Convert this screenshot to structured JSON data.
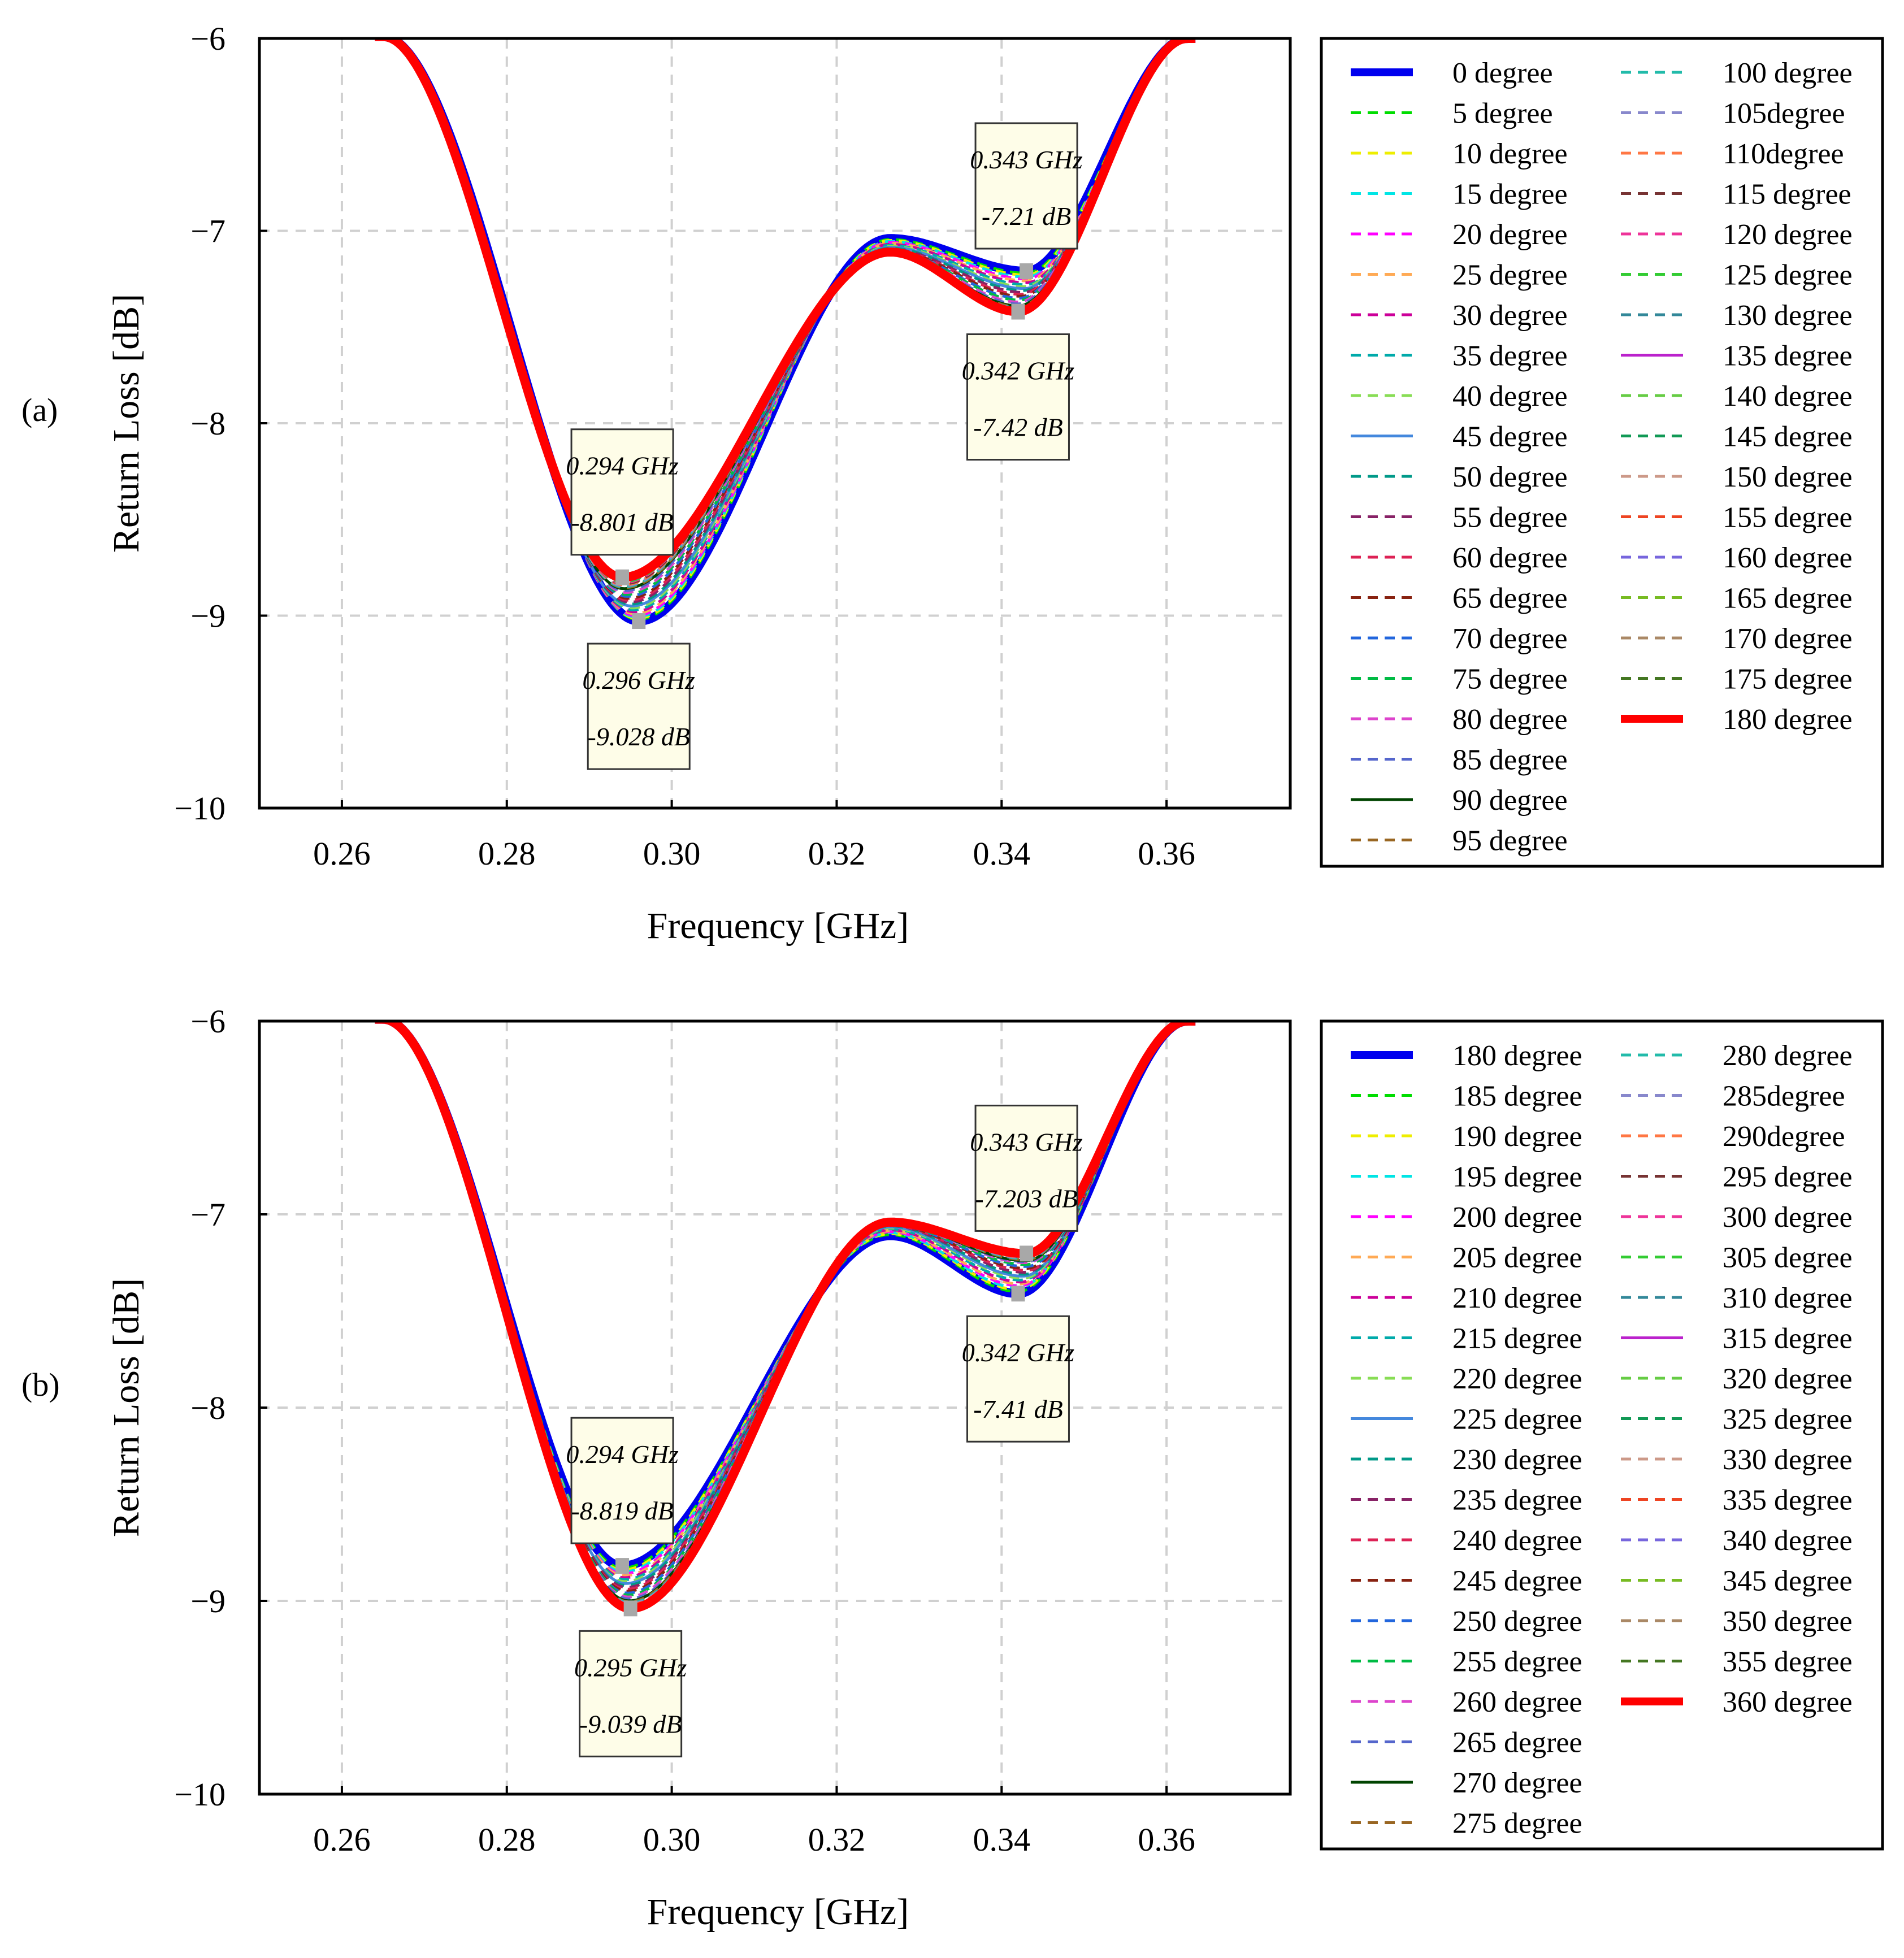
{
  "chart_data": [
    {
      "type": "line",
      "panel_label": "(a)",
      "xlabel": "Frequency [GHz]",
      "ylabel": "Return Loss [dB]",
      "xlim": [
        0.25,
        0.375
      ],
      "ylim": [
        -10,
        -6
      ],
      "xticks": [
        0.26,
        0.28,
        0.3,
        0.32,
        0.34,
        0.36
      ],
      "xtick_labels": [
        "0.26",
        "0.28",
        "0.30",
        "0.32",
        "0.34",
        "0.36"
      ],
      "yticks": [
        -6,
        -7,
        -8,
        -9,
        -10
      ],
      "ytick_labels": [
        "−6",
        "−7",
        "−8",
        "−9",
        "−10"
      ],
      "grid": true,
      "legend_position": "right",
      "legend": [
        "0   degree",
        "5   degree",
        "10 degree",
        "15 degree",
        "20 degree",
        "25 degree",
        "30 degree",
        "35 degree",
        "40 degree",
        "45 degree",
        "50 degree",
        "55 degree",
        "60 degree",
        "65 degree",
        "70 degree",
        "75 degree",
        "80 degree",
        "85 degree",
        "90 degree",
        "95 degree",
        "100 degree",
        "105degree",
        "110degree",
        "115 degree",
        "120 degree",
        "125 degree",
        "130 degree",
        "135 degree",
        "140 degree",
        "145 degree",
        "150 degree",
        "155 degree",
        "160 degree",
        "165 degree",
        "170 degree",
        "175 degree",
        "180 degree"
      ],
      "series_colors": [
        "#0000ee",
        "#00dd00",
        "#eeee00",
        "#00e5e5",
        "#ff00ff",
        "#ffaa55",
        "#cc0099",
        "#00aaaa",
        "#88dd55",
        "#4488dd",
        "#009988",
        "#882266",
        "#dd2255",
        "#882211",
        "#2266dd",
        "#00bb44",
        "#dd44cc",
        "#5566cc",
        "#004400",
        "#996622",
        "#22bbaa",
        "#8888cc",
        "#ff7744",
        "#773333",
        "#ee3399",
        "#33cc33",
        "#338899",
        "#bb22cc",
        "#66cc44",
        "#119955",
        "#cc9988",
        "#ee4422",
        "#7766dd",
        "#77bb22",
        "#aa8866",
        "#447722",
        "#ff0000"
      ],
      "series_style": [
        "solid-thick",
        "dashed",
        "dashed",
        "dashed",
        "dashed",
        "dashed",
        "dashed",
        "dashed",
        "dashed",
        "solid",
        "dashed",
        "dashed",
        "dashed",
        "dashed",
        "dashed",
        "dashed",
        "dashed",
        "dashed",
        "solid",
        "dashed",
        "dashed",
        "dashed",
        "dashed",
        "dashed",
        "dashed",
        "dashed",
        "dashed",
        "solid",
        "dashed",
        "dashed",
        "dashed",
        "dashed",
        "dashed",
        "dashed",
        "dashed",
        "dashed",
        "solid-thick"
      ],
      "series_min1": [
        -9.028,
        -9.02,
        -9.014,
        -9.007,
        -9.0,
        -8.99,
        -8.98,
        -8.97,
        -8.96,
        -8.95,
        -8.94,
        -8.93,
        -8.92,
        -8.91,
        -8.9,
        -8.89,
        -8.88,
        -8.87,
        -8.86,
        -8.855,
        -8.85,
        -8.845,
        -8.84,
        -8.835,
        -8.83,
        -8.825,
        -8.82,
        -8.818,
        -8.816,
        -8.814,
        -8.812,
        -8.81,
        -8.808,
        -8.806,
        -8.804,
        -8.802,
        -8.801
      ],
      "series_f1": [
        0.296,
        0.2959,
        0.2958,
        0.2957,
        0.2956,
        0.2955,
        0.2954,
        0.2953,
        0.2952,
        0.2951,
        0.295,
        0.2949,
        0.2948,
        0.2947,
        0.2946,
        0.2945,
        0.2944,
        0.2943,
        0.2942,
        0.2942,
        0.2941,
        0.2941,
        0.2941,
        0.2941,
        0.294,
        0.294,
        0.294,
        0.294,
        0.294,
        0.294,
        0.294,
        0.294,
        0.294,
        0.294,
        0.294,
        0.294,
        0.294
      ],
      "series_max": [
        -7.04,
        -7.045,
        -7.05,
        -7.055,
        -7.06,
        -7.065,
        -7.07,
        -7.075,
        -7.08,
        -7.085,
        -7.09,
        -7.095,
        -7.1,
        -7.102,
        -7.104,
        -7.106,
        -7.108,
        -7.11,
        -7.11,
        -7.11,
        -7.11,
        -7.11,
        -7.11,
        -7.11,
        -7.11,
        -7.11,
        -7.11,
        -7.11,
        -7.11,
        -7.11,
        -7.11,
        -7.11,
        -7.11,
        -7.11,
        -7.11,
        -7.11,
        -7.11
      ],
      "series_min2": [
        -7.21,
        -7.22,
        -7.23,
        -7.24,
        -7.25,
        -7.26,
        -7.27,
        -7.28,
        -7.29,
        -7.3,
        -7.31,
        -7.32,
        -7.33,
        -7.34,
        -7.35,
        -7.36,
        -7.37,
        -7.38,
        -7.39,
        -7.395,
        -7.4,
        -7.402,
        -7.404,
        -7.406,
        -7.408,
        -7.41,
        -7.412,
        -7.414,
        -7.416,
        -7.418,
        -7.419,
        -7.419,
        -7.42,
        -7.42,
        -7.42,
        -7.42,
        -7.42
      ],
      "series_f2": [
        0.343,
        0.343,
        0.343,
        0.343,
        0.343,
        0.343,
        0.343,
        0.343,
        0.3428,
        0.3428,
        0.3426,
        0.3426,
        0.3424,
        0.3424,
        0.3422,
        0.3422,
        0.342,
        0.342,
        0.342,
        0.342,
        0.342,
        0.342,
        0.342,
        0.342,
        0.342,
        0.342,
        0.342,
        0.342,
        0.342,
        0.342,
        0.342,
        0.342,
        0.342,
        0.342,
        0.342,
        0.342,
        0.342
      ],
      "annotations": [
        {
          "lines": [
            "0.343 GHz",
            "-7.21 dB"
          ],
          "x": 0.343,
          "y": -7.21,
          "anchor": "above"
        },
        {
          "lines": [
            "0.342 GHz",
            "-7.42 dB"
          ],
          "x": 0.342,
          "y": -7.42,
          "anchor": "below"
        },
        {
          "lines": [
            "0.294 GHz",
            "-8.801 dB"
          ],
          "x": 0.294,
          "y": -8.801,
          "anchor": "above"
        },
        {
          "lines": [
            "0.296 GHz",
            "-9.028 dB"
          ],
          "x": 0.296,
          "y": -9.028,
          "anchor": "below"
        }
      ]
    },
    {
      "type": "line",
      "panel_label": "(b)",
      "xlabel": "Frequency [GHz]",
      "ylabel": "Return Loss [dB]",
      "xlim": [
        0.25,
        0.375
      ],
      "ylim": [
        -10,
        -6
      ],
      "xticks": [
        0.26,
        0.28,
        0.3,
        0.32,
        0.34,
        0.36
      ],
      "xtick_labels": [
        "0.26",
        "0.28",
        "0.30",
        "0.32",
        "0.34",
        "0.36"
      ],
      "yticks": [
        -6,
        -7,
        -8,
        -9,
        -10
      ],
      "ytick_labels": [
        "−6",
        "−7",
        "−8",
        "−9",
        "−10"
      ],
      "grid": true,
      "legend_position": "right",
      "legend": [
        "180 degree",
        "185 degree",
        "190 degree",
        "195 degree",
        "200 degree",
        "205 degree",
        "210 degree",
        "215 degree",
        "220 degree",
        "225 degree",
        "230 degree",
        "235 degree",
        "240 degree",
        "245 degree",
        "250 degree",
        "255 degree",
        "260 degree",
        "265 degree",
        "270 degree",
        "275 degree",
        "280 degree",
        "285degree",
        "290degree",
        "295 degree",
        "300 degree",
        "305 degree",
        "310 degree",
        "315 degree",
        "320 degree",
        "325 degree",
        "330 degree",
        "335 degree",
        "340 degree",
        "345 degree",
        "350 degree",
        "355 degree",
        "360 degree"
      ],
      "series_colors": [
        "#0000ee",
        "#00dd00",
        "#eeee00",
        "#00e5e5",
        "#ff00ff",
        "#ffaa55",
        "#cc0099",
        "#00aaaa",
        "#88dd55",
        "#4488dd",
        "#009988",
        "#882266",
        "#dd2255",
        "#882211",
        "#2266dd",
        "#00bb44",
        "#dd44cc",
        "#5566cc",
        "#004400",
        "#996622",
        "#22bbaa",
        "#8888cc",
        "#ff7744",
        "#773333",
        "#ee3399",
        "#33cc33",
        "#338899",
        "#bb22cc",
        "#66cc44",
        "#119955",
        "#cc9988",
        "#ee4422",
        "#7766dd",
        "#77bb22",
        "#aa8866",
        "#447722",
        "#ff0000"
      ],
      "series_style": [
        "solid-thick",
        "dashed",
        "dashed",
        "dashed",
        "dashed",
        "dashed",
        "dashed",
        "dashed",
        "dashed",
        "solid",
        "dashed",
        "dashed",
        "dashed",
        "dashed",
        "dashed",
        "dashed",
        "dashed",
        "dashed",
        "solid",
        "dashed",
        "dashed",
        "dashed",
        "dashed",
        "dashed",
        "dashed",
        "dashed",
        "dashed",
        "solid",
        "dashed",
        "dashed",
        "dashed",
        "dashed",
        "dashed",
        "dashed",
        "dashed",
        "dashed",
        "solid-thick"
      ],
      "series_min1": [
        -8.819,
        -8.83,
        -8.84,
        -8.85,
        -8.86,
        -8.87,
        -8.88,
        -8.89,
        -8.9,
        -8.91,
        -8.92,
        -8.93,
        -8.94,
        -8.95,
        -8.96,
        -8.97,
        -8.98,
        -8.99,
        -9.0,
        -9.005,
        -9.01,
        -9.015,
        -9.02,
        -9.023,
        -9.026,
        -9.029,
        -9.031,
        -9.033,
        -9.034,
        -9.035,
        -9.036,
        -9.037,
        -9.037,
        -9.038,
        -9.038,
        -9.039,
        -9.039
      ],
      "series_f1": [
        0.294,
        0.294,
        0.294,
        0.2941,
        0.2941,
        0.2942,
        0.2942,
        0.2943,
        0.2943,
        0.2944,
        0.2944,
        0.2945,
        0.2945,
        0.2946,
        0.2946,
        0.2947,
        0.2947,
        0.2948,
        0.2948,
        0.2948,
        0.2949,
        0.2949,
        0.2949,
        0.2949,
        0.295,
        0.295,
        0.295,
        0.295,
        0.295,
        0.295,
        0.295,
        0.295,
        0.295,
        0.295,
        0.295,
        0.295,
        0.295
      ],
      "series_max": [
        -7.11,
        -7.105,
        -7.1,
        -7.095,
        -7.09,
        -7.085,
        -7.08,
        -7.075,
        -7.07,
        -7.065,
        -7.06,
        -7.058,
        -7.056,
        -7.054,
        -7.052,
        -7.05,
        -7.048,
        -7.046,
        -7.045,
        -7.044,
        -7.043,
        -7.042,
        -7.041,
        -7.04,
        -7.04,
        -7.04,
        -7.04,
        -7.04,
        -7.04,
        -7.04,
        -7.04,
        -7.04,
        -7.04,
        -7.04,
        -7.04,
        -7.04,
        -7.04
      ],
      "series_min2": [
        -7.41,
        -7.4,
        -7.39,
        -7.38,
        -7.37,
        -7.36,
        -7.35,
        -7.34,
        -7.33,
        -7.32,
        -7.31,
        -7.3,
        -7.29,
        -7.28,
        -7.27,
        -7.26,
        -7.25,
        -7.245,
        -7.24,
        -7.235,
        -7.23,
        -7.226,
        -7.222,
        -7.218,
        -7.215,
        -7.212,
        -7.21,
        -7.208,
        -7.207,
        -7.206,
        -7.205,
        -7.205,
        -7.204,
        -7.204,
        -7.203,
        -7.203,
        -7.203
      ],
      "series_f2": [
        0.342,
        0.342,
        0.342,
        0.342,
        0.3422,
        0.3422,
        0.3424,
        0.3424,
        0.3426,
        0.3426,
        0.3428,
        0.3428,
        0.343,
        0.343,
        0.343,
        0.343,
        0.343,
        0.343,
        0.343,
        0.343,
        0.343,
        0.343,
        0.343,
        0.343,
        0.343,
        0.343,
        0.343,
        0.343,
        0.343,
        0.343,
        0.343,
        0.343,
        0.343,
        0.343,
        0.343,
        0.343,
        0.343
      ],
      "annotations": [
        {
          "lines": [
            "0.343 GHz",
            "-7.203 dB"
          ],
          "x": 0.343,
          "y": -7.203,
          "anchor": "above"
        },
        {
          "lines": [
            "0.342 GHz",
            "-7.41 dB"
          ],
          "x": 0.342,
          "y": -7.41,
          "anchor": "below"
        },
        {
          "lines": [
            "0.294 GHz",
            "-8.819 dB"
          ],
          "x": 0.294,
          "y": -8.819,
          "anchor": "above"
        },
        {
          "lines": [
            "0.295 GHz",
            "-9.039 dB"
          ],
          "x": 0.295,
          "y": -9.039,
          "anchor": "below"
        }
      ]
    }
  ]
}
